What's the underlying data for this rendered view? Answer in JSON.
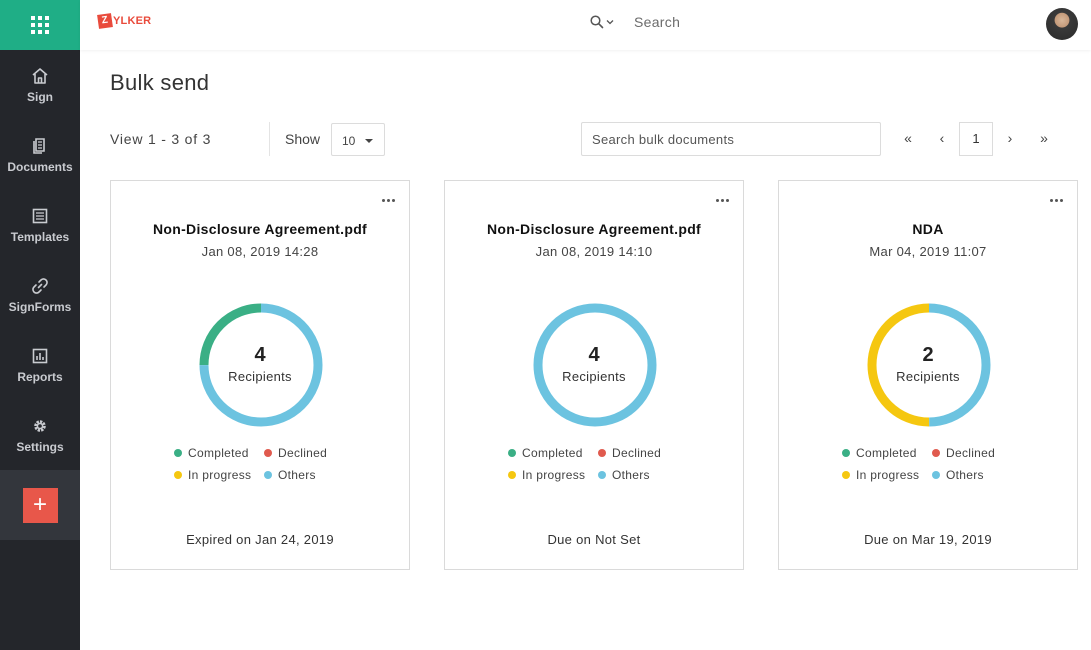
{
  "colors": {
    "sidebar_bg": "#24262b",
    "app_switcher_bg": "#1fae86",
    "add_button": "#e8574a",
    "brand": "#e94b3c",
    "completed": "#3aaf85",
    "declined": "#e05a4e",
    "in_progress": "#f5c710",
    "others": "#6cc3e0"
  },
  "sidebar": {
    "items": [
      {
        "label": "Sign",
        "icon": "home-icon"
      },
      {
        "label": "Documents",
        "icon": "documents-icon"
      },
      {
        "label": "Templates",
        "icon": "templates-icon"
      },
      {
        "label": "SignForms",
        "icon": "link-icon"
      },
      {
        "label": "Reports",
        "icon": "reports-icon"
      },
      {
        "label": "Settings",
        "icon": "gear-icon"
      }
    ],
    "add_label": "+"
  },
  "topbar": {
    "logo_text": "YLKER",
    "logo_mark": "Z",
    "search_label": "Search"
  },
  "page": {
    "title": "Bulk send"
  },
  "toolbar": {
    "view_text": "View  1 - 3  of  3",
    "show_label": "Show",
    "page_size": "10",
    "search_placeholder": "Search bulk documents",
    "first": "«",
    "prev": "‹",
    "current_page": "1",
    "next": "›",
    "last": "»"
  },
  "legend_labels": {
    "completed": "Completed",
    "declined": "Declined",
    "in_progress": "In progress",
    "others": "Others"
  },
  "cards": [
    {
      "title": "Non-Disclosure Agreement.pdf",
      "date": "Jan 08, 2019 14:28",
      "count": "4",
      "count_label": "Recipients",
      "footer": "Expired on Jan 24, 2019",
      "segments": {
        "completed": 1,
        "declined": 0,
        "in_progress": 0,
        "others": 3
      }
    },
    {
      "title": "Non-Disclosure Agreement.pdf",
      "date": "Jan 08, 2019 14:10",
      "count": "4",
      "count_label": "Recipients",
      "footer": "Due on Not Set",
      "segments": {
        "completed": 0,
        "declined": 0,
        "in_progress": 0,
        "others": 4
      }
    },
    {
      "title": "NDA",
      "date": "Mar 04, 2019 11:07",
      "count": "2",
      "count_label": "Recipients",
      "footer": "Due on Mar 19, 2019",
      "segments": {
        "completed": 0,
        "declined": 0,
        "in_progress": 1,
        "others": 1
      }
    }
  ]
}
